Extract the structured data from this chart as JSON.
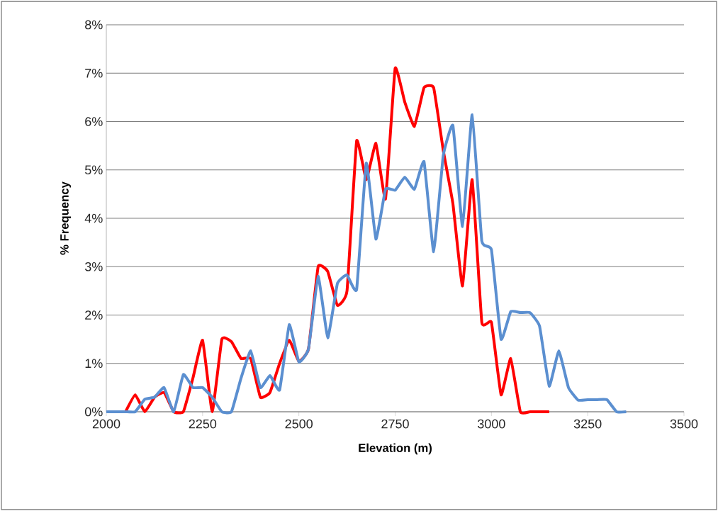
{
  "chart_data": {
    "type": "line",
    "xlabel": "Elevation (m)",
    "ylabel": "% Frequency",
    "xlim": [
      2000,
      3500
    ],
    "xticks": [
      2000,
      2250,
      2500,
      2750,
      3000,
      3250,
      3500
    ],
    "ylim": [
      0,
      8
    ],
    "yticks": [
      {
        "value": 0,
        "label": "0%"
      },
      {
        "value": 1,
        "label": "1%"
      },
      {
        "value": 2,
        "label": "2%"
      },
      {
        "value": 3,
        "label": "3%"
      },
      {
        "value": 4,
        "label": "4%"
      },
      {
        "value": 5,
        "label": "5%"
      },
      {
        "value": 6,
        "label": "6%"
      },
      {
        "value": 7,
        "label": "7%"
      },
      {
        "value": 8,
        "label": "8%"
      }
    ],
    "grid": "y",
    "marker": "none",
    "line_style": "solid",
    "series": [
      {
        "color": "#ff0000",
        "x": [
          2050,
          2075,
          2100,
          2125,
          2150,
          2175,
          2200,
          2225,
          2250,
          2275,
          2300,
          2325,
          2350,
          2375,
          2400,
          2425,
          2450,
          2475,
          2500,
          2525,
          2550,
          2575,
          2600,
          2625,
          2650,
          2675,
          2700,
          2725,
          2750,
          2775,
          2800,
          2825,
          2850,
          2875,
          2900,
          2925,
          2950,
          2975,
          3000,
          3025,
          3050,
          3075,
          3100,
          3125,
          3150
        ],
        "values": [
          0,
          0.35,
          0,
          0.3,
          0.4,
          0,
          0,
          0.7,
          1.48,
          0,
          1.5,
          1.45,
          1.1,
          1.1,
          0.3,
          0.4,
          1.0,
          1.48,
          1.04,
          1.3,
          3.0,
          2.9,
          2.2,
          2.5,
          5.6,
          4.8,
          5.55,
          4.4,
          7.1,
          6.4,
          5.9,
          6.7,
          6.7,
          5.4,
          4.3,
          2.6,
          4.8,
          1.85,
          1.85,
          0.35,
          1.1,
          0,
          0,
          0,
          0
        ]
      },
      {
        "color": "#5b8fd0",
        "x": [
          2000,
          2025,
          2050,
          2075,
          2100,
          2125,
          2150,
          2175,
          2200,
          2225,
          2250,
          2275,
          2300,
          2325,
          2350,
          2375,
          2400,
          2425,
          2450,
          2475,
          2500,
          2525,
          2550,
          2575,
          2600,
          2625,
          2650,
          2675,
          2700,
          2725,
          2750,
          2775,
          2800,
          2825,
          2850,
          2875,
          2900,
          2925,
          2950,
          2975,
          3000,
          3025,
          3050,
          3075,
          3100,
          3125,
          3150,
          3175,
          3200,
          3225,
          3250,
          3275,
          3300,
          3325,
          3350
        ],
        "values": [
          0,
          0,
          0,
          0,
          0.26,
          0.3,
          0.5,
          0,
          0.77,
          0.5,
          0.5,
          0.3,
          0,
          0,
          0.7,
          1.26,
          0.5,
          0.75,
          0.45,
          1.8,
          1.03,
          1.3,
          2.8,
          1.53,
          2.65,
          2.83,
          2.53,
          5.14,
          3.57,
          4.6,
          4.58,
          4.85,
          4.6,
          5.17,
          3.31,
          5.3,
          5.92,
          3.83,
          6.14,
          3.53,
          3.35,
          1.5,
          2.07,
          2.05,
          2.05,
          1.77,
          0.53,
          1.26,
          0.5,
          0.24,
          0.25,
          0.25,
          0.25,
          0,
          0
        ]
      }
    ]
  }
}
